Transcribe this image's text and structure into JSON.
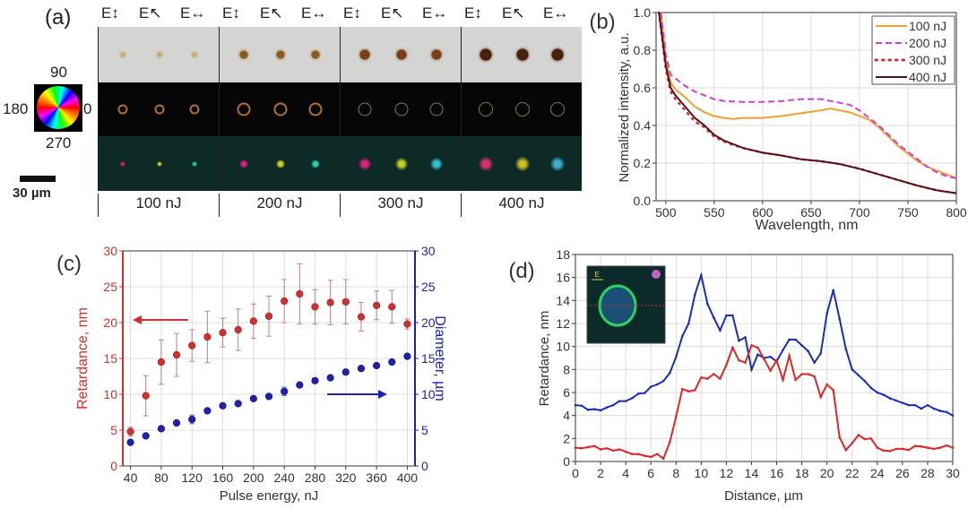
{
  "panel_a": {
    "label": "(a)",
    "headers": [
      "E↕",
      "E↖",
      "E↔"
    ],
    "energies": [
      "100 nJ",
      "200 nJ",
      "300 nJ",
      "400 nJ"
    ],
    "wheel": {
      "top": "90",
      "left": "180",
      "right": "0",
      "bottom": "270"
    },
    "scale_bar": "30 µm"
  },
  "chart_data": [
    {
      "panel": "(b)",
      "type": "line",
      "xlabel": "Wavelength, nm",
      "ylabel": "Normalized intensity, a.u.",
      "xlim": [
        490,
        800
      ],
      "ylim": [
        0,
        1.0
      ],
      "xticks": [
        500,
        550,
        600,
        650,
        700,
        750,
        800
      ],
      "yticks": [
        0.0,
        0.2,
        0.4,
        0.6,
        0.8,
        1.0
      ],
      "grid": true,
      "legend": "top-right",
      "series": [
        {
          "name": "100 nJ",
          "color": "#f0a030",
          "style": "solid",
          "x": [
            495,
            500,
            505,
            510,
            520,
            530,
            540,
            550,
            560,
            570,
            580,
            600,
            620,
            640,
            660,
            670,
            680,
            690,
            700,
            710,
            720,
            730,
            740,
            750,
            760,
            770,
            780,
            790,
            800
          ],
          "y": [
            1.0,
            0.75,
            0.63,
            0.59,
            0.55,
            0.5,
            0.47,
            0.45,
            0.44,
            0.435,
            0.44,
            0.44,
            0.45,
            0.465,
            0.48,
            0.49,
            0.48,
            0.47,
            0.45,
            0.43,
            0.39,
            0.34,
            0.29,
            0.25,
            0.21,
            0.18,
            0.16,
            0.14,
            0.12
          ]
        },
        {
          "name": "200 nJ",
          "color": "#d040d0",
          "style": "dashed",
          "x": [
            495,
            500,
            505,
            510,
            520,
            530,
            540,
            550,
            560,
            580,
            600,
            620,
            640,
            660,
            680,
            690,
            700,
            710,
            720,
            730,
            740,
            750,
            760,
            770,
            780,
            790,
            800
          ],
          "y": [
            1.0,
            0.78,
            0.67,
            0.65,
            0.61,
            0.58,
            0.56,
            0.54,
            0.53,
            0.525,
            0.525,
            0.53,
            0.54,
            0.54,
            0.52,
            0.51,
            0.48,
            0.44,
            0.4,
            0.35,
            0.3,
            0.26,
            0.22,
            0.18,
            0.15,
            0.13,
            0.12
          ]
        },
        {
          "name": "300 nJ",
          "color": "#c83040",
          "style": "dotted",
          "x": [
            493,
            500,
            505,
            510,
            520,
            530,
            540,
            550,
            560,
            570,
            580,
            600,
            620,
            640,
            660,
            680,
            700,
            720,
            740,
            760,
            780,
            800
          ],
          "y": [
            1.0,
            0.7,
            0.58,
            0.54,
            0.48,
            0.42,
            0.39,
            0.34,
            0.315,
            0.295,
            0.28,
            0.255,
            0.24,
            0.22,
            0.21,
            0.195,
            0.17,
            0.14,
            0.11,
            0.08,
            0.055,
            0.04
          ]
        },
        {
          "name": "400 nJ",
          "color": "#5a1010",
          "style": "solid",
          "x": [
            493,
            500,
            505,
            510,
            520,
            530,
            540,
            550,
            560,
            570,
            580,
            600,
            620,
            640,
            660,
            680,
            700,
            720,
            740,
            760,
            780,
            800
          ],
          "y": [
            1.0,
            0.72,
            0.6,
            0.56,
            0.5,
            0.44,
            0.4,
            0.35,
            0.32,
            0.3,
            0.28,
            0.255,
            0.24,
            0.22,
            0.21,
            0.195,
            0.17,
            0.14,
            0.11,
            0.08,
            0.055,
            0.04
          ]
        }
      ]
    },
    {
      "panel": "(c)",
      "type": "scatter",
      "xlabel": "Pulse energy, nJ",
      "ylabel": "Retardance, nm",
      "ylabel_right": "Diameter, µm",
      "xlim": [
        30,
        410
      ],
      "ylim": [
        0,
        30
      ],
      "ylim_right": [
        0,
        30
      ],
      "xticks": [
        40,
        80,
        120,
        160,
        200,
        240,
        280,
        320,
        360,
        400
      ],
      "yticks": [
        0,
        5,
        10,
        15,
        20,
        25,
        30
      ],
      "grid": true,
      "x": [
        40,
        60,
        80,
        100,
        120,
        140,
        160,
        180,
        200,
        220,
        240,
        260,
        280,
        300,
        320,
        340,
        360,
        380,
        400
      ],
      "series": [
        {
          "axis": "left",
          "color": "#d03030",
          "values": [
            4.8,
            9.8,
            14.5,
            15.5,
            16.8,
            18.0,
            18.6,
            19.0,
            20.2,
            20.9,
            23.0,
            24.0,
            22.2,
            22.8,
            22.9,
            20.8,
            22.4,
            22.2,
            19.8
          ],
          "errors": [
            0.6,
            2.8,
            3.1,
            3.0,
            2.2,
            3.6,
            2.0,
            2.9,
            2.4,
            2.8,
            3.0,
            4.2,
            2.4,
            3.1,
            3.1,
            2.0,
            2.0,
            2.3,
            0.7
          ]
        },
        {
          "axis": "right",
          "color": "#2020b0",
          "values": [
            3.3,
            4.2,
            5.2,
            6.0,
            6.5,
            7.7,
            8.4,
            8.7,
            9.4,
            9.7,
            10.4,
            11.3,
            11.9,
            12.3,
            13.1,
            13.6,
            14.0,
            14.5,
            15.3
          ],
          "errors": [
            0,
            0,
            0,
            0,
            0.6,
            0,
            0,
            0,
            0,
            0,
            0.6,
            0,
            0,
            0,
            0,
            0,
            0,
            0,
            0
          ]
        }
      ]
    },
    {
      "panel": "(d)",
      "type": "line",
      "xlabel": "Distance, µm",
      "ylabel": "Retardance, nm",
      "xlim": [
        0,
        30
      ],
      "ylim": [
        0,
        18
      ],
      "xticks": [
        0,
        2,
        4,
        6,
        8,
        10,
        12,
        14,
        16,
        18,
        20,
        22,
        24,
        26,
        28,
        30
      ],
      "yticks": [
        0,
        2,
        4,
        6,
        8,
        10,
        12,
        14,
        16,
        18
      ],
      "grid": true,
      "inset_label": "E",
      "x_step": 0.5,
      "series": [
        {
          "color": "#1a2fb0",
          "values": [
            4.9,
            4.85,
            4.5,
            4.55,
            4.45,
            4.7,
            4.9,
            5.25,
            5.25,
            5.5,
            5.9,
            5.95,
            6.5,
            6.7,
            7.0,
            7.7,
            9.1,
            10.9,
            12.0,
            14.5,
            16.2,
            13.7,
            12.5,
            11.4,
            12.7,
            12.7,
            10.5,
            10.8,
            8.0,
            9.3,
            9.0,
            9.1,
            8.7,
            9.7,
            10.6,
            10.6,
            10.1,
            9.6,
            8.6,
            9.4,
            12.9,
            14.9,
            12.4,
            9.8,
            8.0,
            7.5,
            7.0,
            6.4,
            6.0,
            5.8,
            5.5,
            5.3,
            5.1,
            4.9,
            4.9,
            4.6,
            4.9,
            4.6,
            4.4,
            4.3,
            4.0
          ]
        },
        {
          "color": "#d82828",
          "values": [
            1.2,
            1.15,
            1.25,
            1.35,
            1.05,
            1.15,
            0.95,
            1.05,
            0.85,
            0.65,
            0.65,
            0.5,
            0.4,
            0.65,
            0.25,
            1.7,
            3.9,
            6.3,
            6.1,
            6.2,
            7.3,
            7.2,
            7.6,
            7.2,
            8.4,
            9.9,
            8.8,
            8.6,
            10.1,
            9.9,
            8.9,
            7.9,
            8.8,
            7.1,
            9.2,
            7.1,
            7.6,
            7.6,
            7.4,
            5.6,
            6.7,
            6.2,
            2.1,
            1.0,
            1.6,
            2.3,
            1.95,
            2.0,
            1.2,
            0.95,
            0.9,
            1.1,
            1.1,
            1.0,
            1.35,
            1.3,
            1.2,
            1.1,
            1.2,
            1.4,
            1.2
          ]
        }
      ]
    }
  ]
}
